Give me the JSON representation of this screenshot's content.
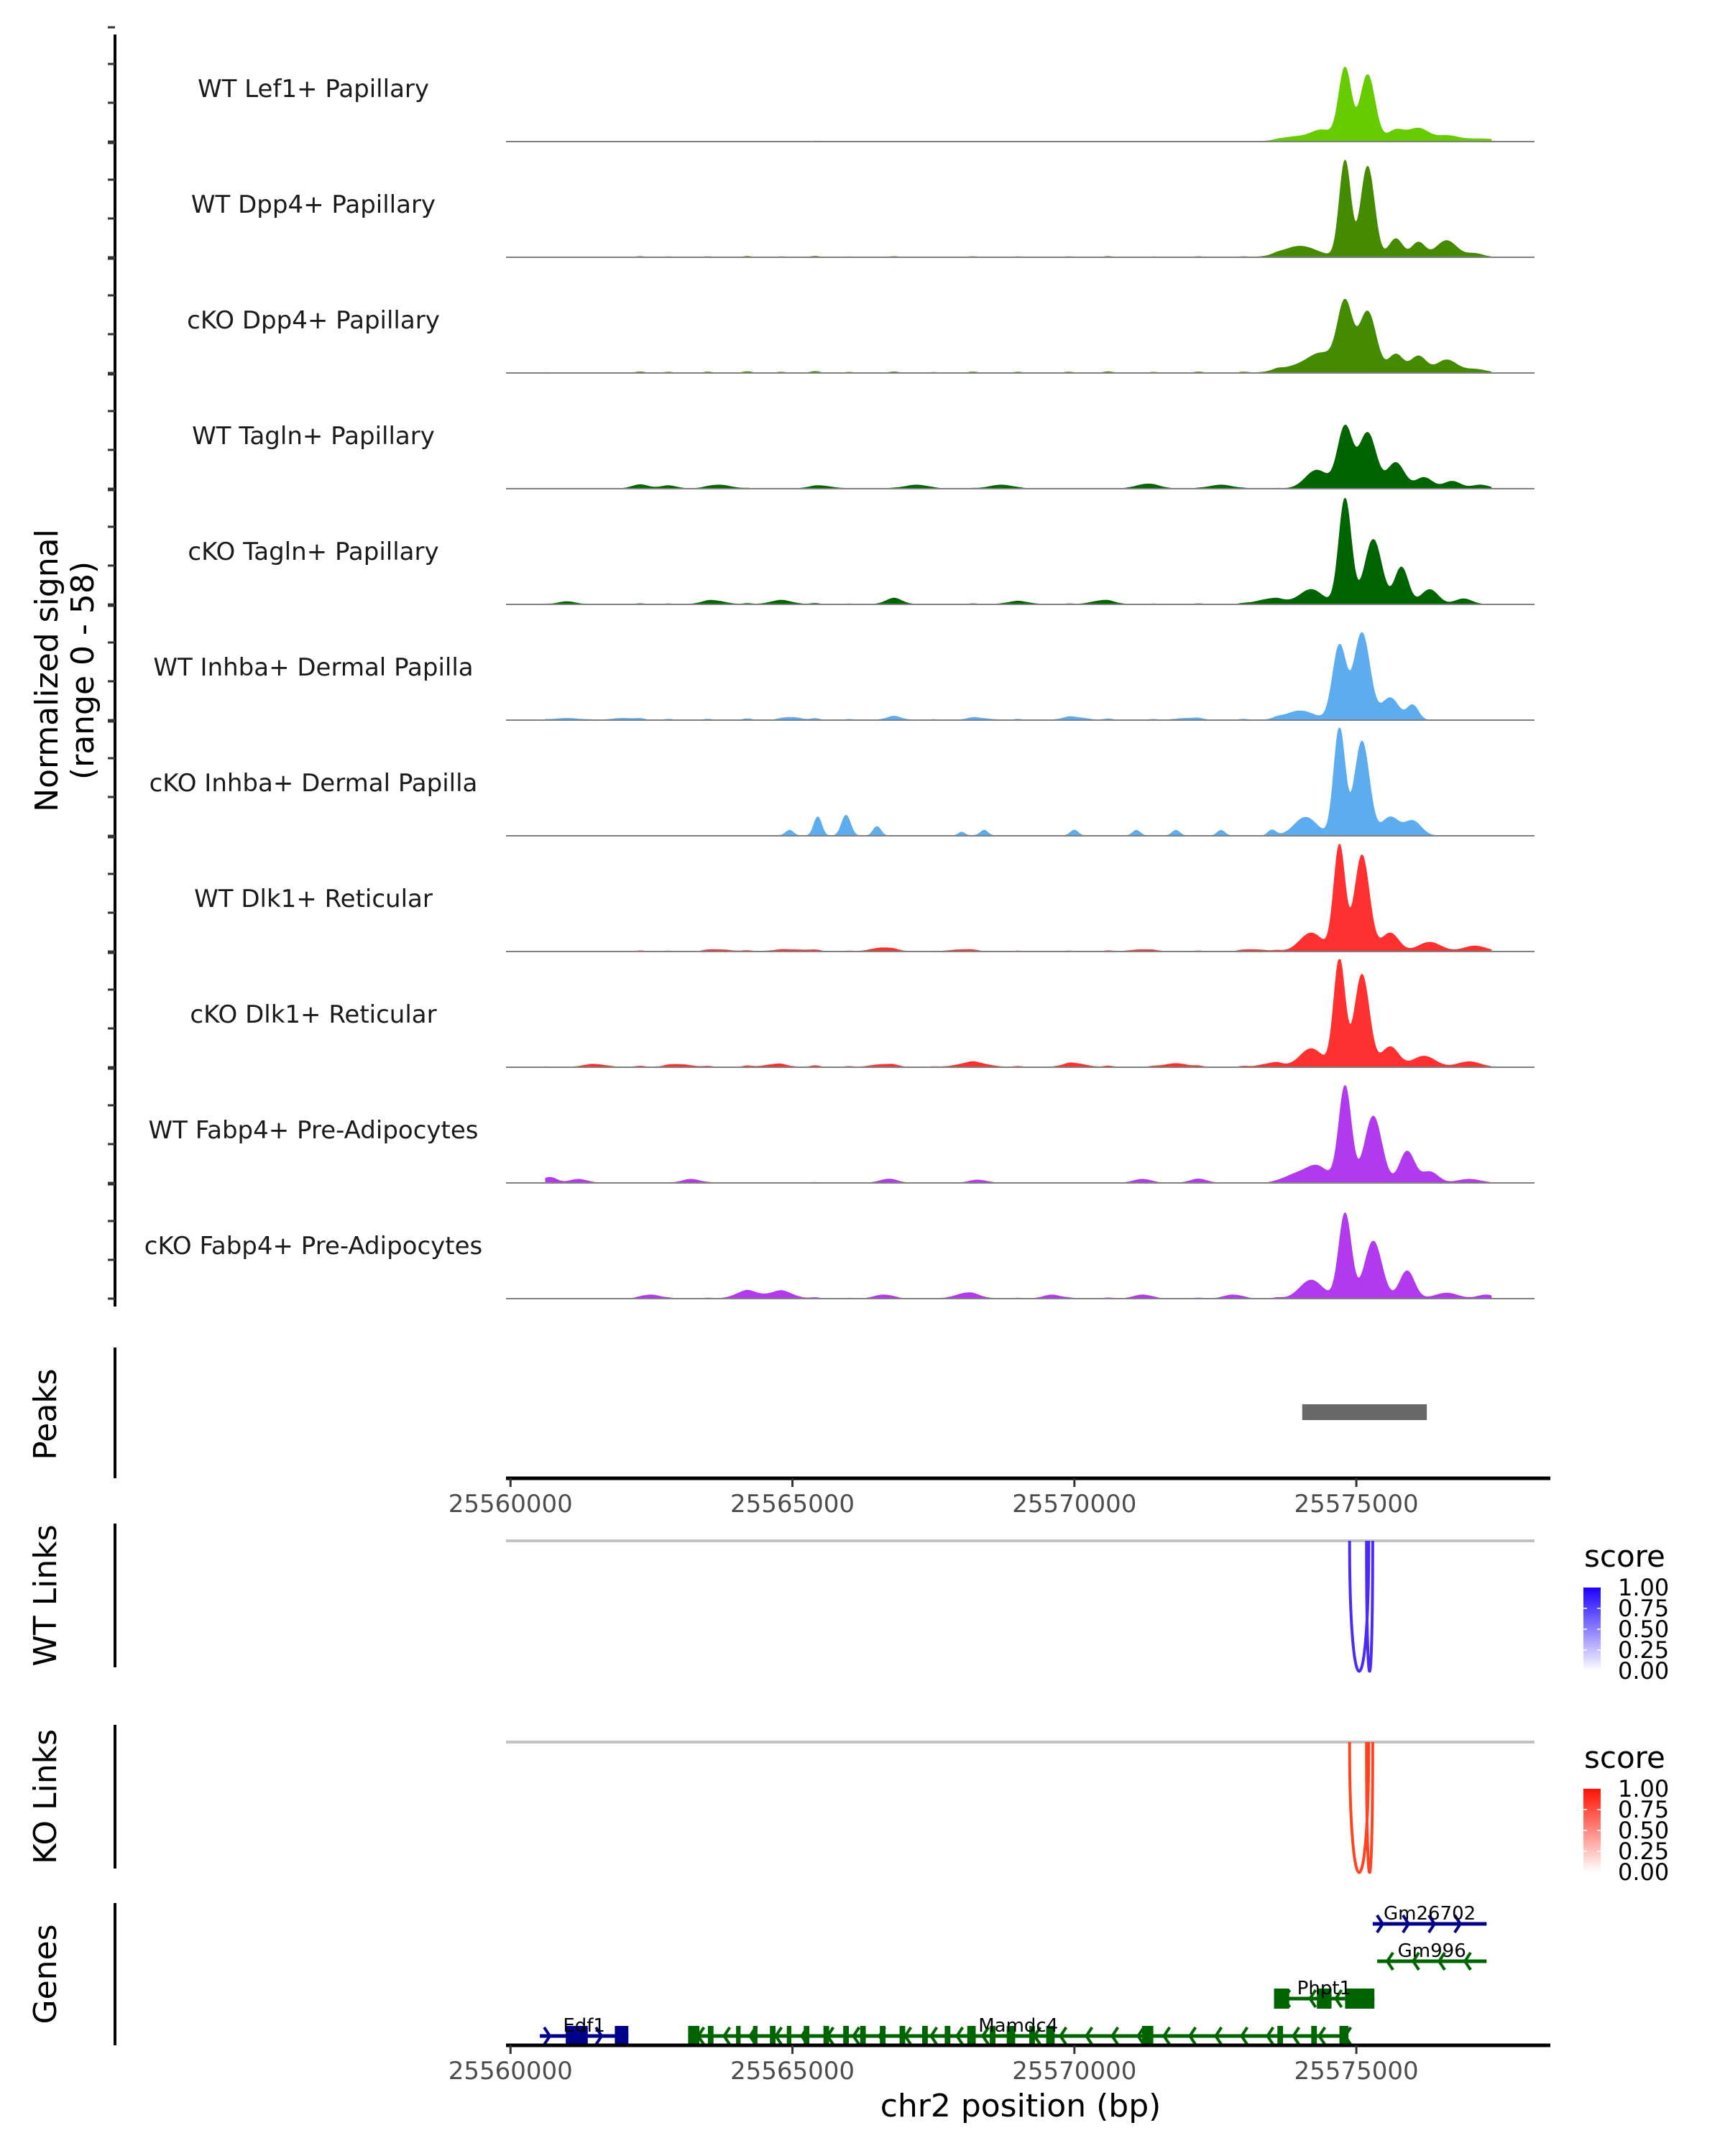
{
  "chart_data": {
    "type": "area",
    "title": "",
    "region": {
      "chrom": "chr2",
      "start": 25559920,
      "end": 25578160
    },
    "coverage": {
      "ylabel_line1": "Normalized signal",
      "ylabel_line2": "(range 0 - 58)",
      "ylim": [
        0,
        58
      ],
      "background_noise": [
        [
          25560600,
          0.6
        ],
        [
          25561400,
          0.4
        ],
        [
          25562300,
          1.2
        ],
        [
          25562800,
          0.9
        ],
        [
          25563500,
          1.0
        ],
        [
          25564200,
          1.4
        ],
        [
          25564800,
          0.9
        ],
        [
          25565400,
          1.6
        ],
        [
          25566000,
          0.8
        ],
        [
          25566800,
          1.2
        ],
        [
          25567500,
          0.6
        ],
        [
          25568200,
          1.1
        ],
        [
          25569000,
          0.9
        ],
        [
          25569900,
          1.0
        ],
        [
          25570600,
          1.3
        ],
        [
          25571400,
          0.8
        ],
        [
          25572200,
          1.1
        ],
        [
          25573000,
          1.0
        ],
        [
          25573600,
          1.5
        ]
      ],
      "tracks": [
        {
          "label": "WT Lef1+ Papillary",
          "color": "#66CC00",
          "peaks": [
            [
              25573900,
              2.5,
              250
            ],
            [
              25574400,
              6,
              200
            ],
            [
              25574800,
              39,
              110
            ],
            [
              25575200,
              36,
              130
            ],
            [
              25575700,
              6,
              150
            ],
            [
              25576100,
              7,
              180
            ],
            [
              25576600,
              3,
              200
            ],
            [
              25577200,
              1.5,
              300
            ]
          ]
        },
        {
          "label": "WT Dpp4+ Papillary",
          "color": "#458B00",
          "peaks": [
            [
              25574000,
              6,
              300
            ],
            [
              25574800,
              52,
              100
            ],
            [
              25575200,
              49,
              120
            ],
            [
              25575700,
              10,
              120
            ],
            [
              25576100,
              8,
              120
            ],
            [
              25576600,
              9,
              180
            ],
            [
              25577100,
              2,
              150
            ]
          ]
        },
        {
          "label": "cKO Dpp4+ Papillary",
          "color": "#458B00",
          "peaks": [
            [
              25573900,
              3,
              300
            ],
            [
              25574400,
              10,
              250
            ],
            [
              25574800,
              36,
              130
            ],
            [
              25575200,
              33,
              150
            ],
            [
              25575700,
              10,
              130
            ],
            [
              25576100,
              9,
              140
            ],
            [
              25576600,
              7,
              180
            ],
            [
              25577100,
              2,
              200
            ]
          ]
        },
        {
          "label": "WT Tagln+ Papillary",
          "color": "#006400",
          "peaks": [
            [
              25562300,
              2,
              150
            ],
            [
              25562800,
              1.5,
              150
            ],
            [
              25563700,
              2,
              200
            ],
            [
              25565500,
              1.5,
              200
            ],
            [
              25567200,
              2,
              200
            ],
            [
              25568700,
              2,
              200
            ],
            [
              25571300,
              2.5,
              200
            ],
            [
              25572600,
              2,
              200
            ],
            [
              25574300,
              10,
              200
            ],
            [
              25574800,
              33,
              130
            ],
            [
              25575200,
              30,
              150
            ],
            [
              25575700,
              14,
              150
            ],
            [
              25576200,
              6,
              150
            ],
            [
              25576700,
              4,
              150
            ],
            [
              25577200,
              2,
              150
            ]
          ]
        },
        {
          "label": "cKO Tagln+ Papillary",
          "color": "#006400",
          "peaks": [
            [
              25561000,
              1.5,
              150
            ],
            [
              25563600,
              2,
              200
            ],
            [
              25564800,
              2,
              200
            ],
            [
              25566800,
              3,
              150
            ],
            [
              25569000,
              1.5,
              200
            ],
            [
              25570500,
              2,
              200
            ],
            [
              25573500,
              3,
              250
            ],
            [
              25574200,
              8,
              200
            ],
            [
              25574800,
              57,
              110
            ],
            [
              25575300,
              35,
              150
            ],
            [
              25575800,
              20,
              120
            ],
            [
              25576300,
              8,
              150
            ],
            [
              25576900,
              3,
              150
            ]
          ]
        },
        {
          "label": "WT Inhba+ Dermal Papilla",
          "color": "#5CACEE",
          "peaks": [
            [
              25561000,
              1,
              200
            ],
            [
              25562000,
              1,
              200
            ],
            [
              25565000,
              1.5,
              150
            ],
            [
              25566800,
              1.5,
              150
            ],
            [
              25568300,
              1,
              200
            ],
            [
              25570000,
              1.5,
              200
            ],
            [
              25572000,
              1,
              200
            ],
            [
              25574000,
              5,
              250
            ],
            [
              25574700,
              40,
              120
            ],
            [
              25575100,
              47,
              140
            ],
            [
              25575600,
              12,
              150
            ],
            [
              25576000,
              8,
              100
            ]
          ]
        },
        {
          "label": "cKO Inhba+ Dermal Papilla",
          "color": "#5CACEE",
          "peaks": [
            [
              25564950,
              3,
              70
            ],
            [
              25565450,
              10,
              70
            ],
            [
              25565950,
              11,
              80
            ],
            [
              25566500,
              5,
              70
            ],
            [
              25568000,
              2,
              60
            ],
            [
              25568400,
              3,
              70
            ],
            [
              25570000,
              3,
              70
            ],
            [
              25571100,
              3,
              70
            ],
            [
              25571800,
              3,
              70
            ],
            [
              25572600,
              3,
              70
            ],
            [
              25573500,
              3,
              70
            ],
            [
              25574100,
              10,
              200
            ],
            [
              25574700,
              58,
              100
            ],
            [
              25575100,
              51,
              130
            ],
            [
              25575600,
              10,
              150
            ],
            [
              25576000,
              8,
              150
            ]
          ]
        },
        {
          "label": "WT Dlk1+ Reticular",
          "color": "#FF3030",
          "peaks": [
            [
              25563700,
              1,
              200
            ],
            [
              25565000,
              1,
              300
            ],
            [
              25566600,
              2,
              200
            ],
            [
              25568000,
              1,
              200
            ],
            [
              25571200,
              1,
              200
            ],
            [
              25573200,
              1,
              200
            ],
            [
              25574200,
              10,
              200
            ],
            [
              25574700,
              57,
              100
            ],
            [
              25575100,
              52,
              130
            ],
            [
              25575600,
              10,
              150
            ],
            [
              25576300,
              5,
              200
            ],
            [
              25577100,
              3,
              200
            ]
          ]
        },
        {
          "label": "cKO Dlk1+ Reticular",
          "color": "#FF3030",
          "peaks": [
            [
              25561500,
              1.5,
              200
            ],
            [
              25563000,
              1.5,
              200
            ],
            [
              25564700,
              1.5,
              200
            ],
            [
              25566600,
              1.5,
              200
            ],
            [
              25568200,
              2.5,
              250
            ],
            [
              25570000,
              2,
              200
            ],
            [
              25571800,
              2,
              200
            ],
            [
              25573500,
              2,
              200
            ],
            [
              25574200,
              10,
              200
            ],
            [
              25574700,
              58,
              100
            ],
            [
              25575100,
              50,
              130
            ],
            [
              25575600,
              11,
              150
            ],
            [
              25576200,
              6,
              200
            ],
            [
              25577000,
              3,
              200
            ]
          ]
        },
        {
          "label": "WT Fabp4+ Pre-Adipocytes",
          "color": "#B23AEE",
          "peaks": [
            [
              25560700,
              3,
              120
            ],
            [
              25561200,
              2,
              150
            ],
            [
              25563200,
              2,
              150
            ],
            [
              25566700,
              2,
              150
            ],
            [
              25568300,
              1.5,
              150
            ],
            [
              25571200,
              2,
              150
            ],
            [
              25572200,
              2,
              150
            ],
            [
              25573900,
              4,
              200
            ],
            [
              25574300,
              9,
              200
            ],
            [
              25574800,
              52,
              110
            ],
            [
              25575300,
              36,
              150
            ],
            [
              25575900,
              17,
              130
            ],
            [
              25576300,
              6,
              150
            ],
            [
              25577000,
              2,
              200
            ]
          ]
        },
        {
          "label": "cKO Fabp4+ Pre-Adipocytes",
          "color": "#B23AEE",
          "peaks": [
            [
              25562500,
              2,
              150
            ],
            [
              25564200,
              4,
              200
            ],
            [
              25564800,
              4,
              200
            ],
            [
              25566600,
              2,
              150
            ],
            [
              25568100,
              3,
              200
            ],
            [
              25569600,
              2,
              150
            ],
            [
              25571200,
              2,
              150
            ],
            [
              25572800,
              2,
              150
            ],
            [
              25574200,
              10,
              200
            ],
            [
              25574800,
              46,
              110
            ],
            [
              25575300,
              31,
              150
            ],
            [
              25575900,
              15,
              130
            ],
            [
              25576600,
              3,
              200
            ],
            [
              25577300,
              2,
              150
            ]
          ]
        }
      ]
    },
    "peaks_track": {
      "label": "Peaks",
      "color": "#696969",
      "ranges": [
        [
          25574040,
          25576250
        ]
      ]
    },
    "xaxis": {
      "ticks": [
        25560000,
        25565000,
        25570000,
        25575000
      ],
      "tick_labels": [
        "25560000",
        "25565000",
        "25570000",
        "25575000"
      ],
      "title": "chr2 position (bp)"
    },
    "links_tracks": [
      {
        "label": "WT Links",
        "color": "#4B2BF5",
        "links": [
          [
            25574880,
            25575220,
            0.85
          ],
          [
            25575180,
            25575290,
            1.0
          ]
        ],
        "legend": {
          "title": "score",
          "labels": [
            "1.00",
            "0.75",
            "0.50",
            "0.25",
            "0.00"
          ],
          "low": "#FFFFFF",
          "high": "#1A00FF"
        }
      },
      {
        "label": "KO Links",
        "color": "#FF4422",
        "links": [
          [
            25574880,
            25575220,
            0.85
          ],
          [
            25575180,
            25575290,
            1.0
          ]
        ],
        "legend": {
          "title": "score",
          "labels": [
            "1.00",
            "0.75",
            "0.50",
            "0.25",
            "0.00"
          ],
          "low": "#FFFFFF",
          "high": "#FF1100"
        }
      }
    ],
    "genes_track": {
      "label": "Genes",
      "genes": [
        {
          "name": "Edf1",
          "strand": "+",
          "start": 25560520,
          "end": 25562090,
          "row": 0,
          "color": "#00008B",
          "exons": [
            [
              25560980,
              25561370
            ],
            [
              25561850,
              25562090
            ]
          ]
        },
        {
          "name": "Mamdc4",
          "strand": "-",
          "start": 25563150,
          "end": 25574860,
          "row": 0,
          "color": "#006400",
          "exons": [
            [
              25563150,
              25563350
            ],
            [
              25563500,
              25563600
            ],
            [
              25564000,
              25564080
            ],
            [
              25564300,
              25564380
            ],
            [
              25564600,
              25564700
            ],
            [
              25564900,
              25564980
            ],
            [
              25565200,
              25565300
            ],
            [
              25565550,
              25565650
            ],
            [
              25565900,
              25566000
            ],
            [
              25566200,
              25566300
            ],
            [
              25566550,
              25566650
            ],
            [
              25566900,
              25567000
            ],
            [
              25567300,
              25567400
            ],
            [
              25567700,
              25567800
            ],
            [
              25568100,
              25568250
            ],
            [
              25568500,
              25568600
            ],
            [
              25568800,
              25568950
            ],
            [
              25569200,
              25569300
            ],
            [
              25569500,
              25569650
            ],
            [
              25571200,
              25571400
            ],
            [
              25573600,
              25573700
            ],
            [
              25574200,
              25574300
            ],
            [
              25574700,
              25574860
            ]
          ]
        },
        {
          "name": "Phpt1",
          "strand": "-",
          "start": 25573540,
          "end": 25575320,
          "row": 1,
          "color": "#006400",
          "exons": [
            [
              25573540,
              25573810
            ],
            [
              25574300,
              25574560
            ],
            [
              25574800,
              25575320
            ]
          ]
        },
        {
          "name": "Gm996",
          "strand": "-",
          "start": 25575370,
          "end": 25577310,
          "row": 2,
          "color": "#006400",
          "exons": []
        },
        {
          "name": "Gm26702",
          "strand": "+",
          "start": 25575290,
          "end": 25577310,
          "row": 3,
          "color": "#00008B",
          "exons": []
        }
      ]
    }
  }
}
